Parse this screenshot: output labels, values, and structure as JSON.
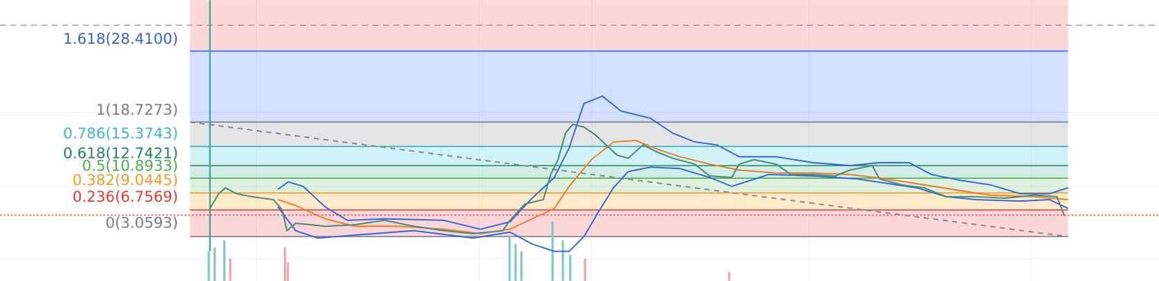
{
  "fib_levels": [
    {
      "label": "1.618(28.4100)"
    },
    {
      "label": "1(18.7273)"
    },
    {
      "label": "0.786(15.3743)"
    },
    {
      "label": "0.618(12.7421)"
    },
    {
      "label": "0.5(10.8933)"
    },
    {
      "label": "0.382(9.0445)"
    },
    {
      "label": "0.236(6.7569)"
    },
    {
      "label": "0(3.0593)"
    }
  ]
}
